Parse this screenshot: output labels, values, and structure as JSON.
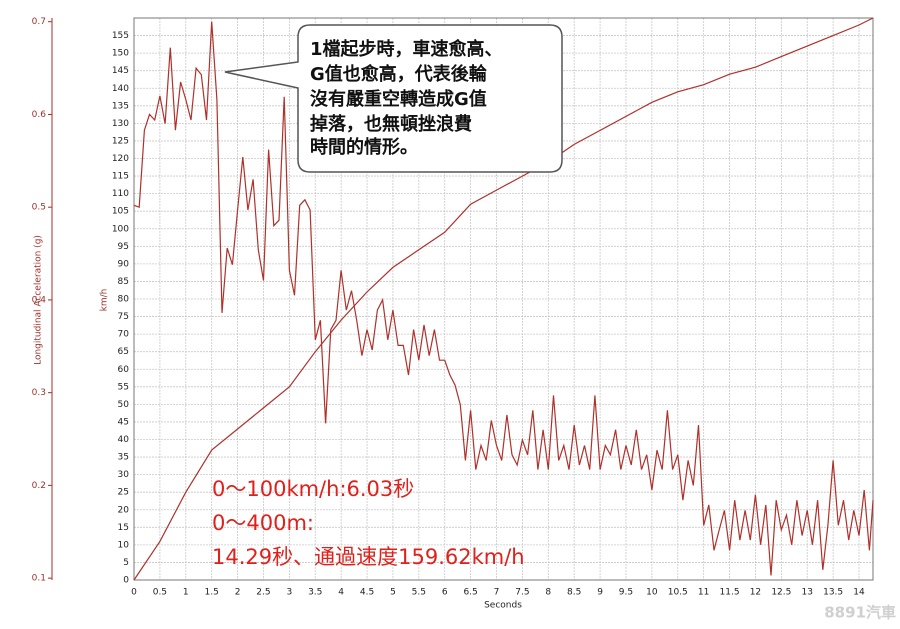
{
  "chart_data": {
    "type": "line",
    "x_label": "Seconds",
    "y_label": "km/h",
    "y2_label": "Longitudinal Acceleration (g)",
    "xlim": [
      0,
      14.27
    ],
    "ylim": [
      0,
      160
    ],
    "y2lim": [
      0.098,
      0.704
    ],
    "xticks": [
      0,
      0.5,
      1,
      1.5,
      2,
      2.5,
      3,
      3.5,
      4,
      4.5,
      5,
      5.5,
      6,
      6.5,
      7,
      7.5,
      8,
      8.5,
      9,
      9.5,
      10,
      10.5,
      11,
      11.5,
      12,
      12.5,
      13,
      13.5,
      14
    ],
    "yticks": [
      0,
      5,
      10,
      15,
      20,
      25,
      30,
      35,
      40,
      45,
      50,
      55,
      60,
      65,
      70,
      75,
      80,
      85,
      90,
      95,
      100,
      105,
      110,
      115,
      120,
      125,
      130,
      135,
      140,
      145,
      150,
      155
    ],
    "y2ticks": [
      0.1,
      0.2,
      0.3,
      0.4,
      0.5,
      0.6,
      0.7
    ],
    "grid": true,
    "series": [
      {
        "color": "#b0302a",
        "x": [
          0,
          0.5,
          1,
          1.5,
          2,
          2.5,
          3,
          3.5,
          4,
          4.5,
          5,
          5.5,
          6,
          6.5,
          7,
          7.5,
          8,
          8.5,
          9,
          9.5,
          10,
          10.5,
          11,
          11.5,
          12,
          12.5,
          13,
          13.5,
          14,
          14.27
        ],
        "values": [
          0,
          11,
          25,
          37,
          43,
          49,
          55,
          65,
          74,
          82,
          89,
          94,
          99,
          107,
          111,
          115,
          119,
          124,
          128,
          132,
          136,
          139,
          141,
          144,
          146,
          149,
          152,
          155,
          158,
          160
        ]
      },
      {
        "color": "#b0302a",
        "axis": "y2",
        "x": [
          0,
          0.1,
          0.2,
          0.3,
          0.4,
          0.5,
          0.6,
          0.7,
          0.8,
          0.9,
          1,
          1.1,
          1.2,
          1.3,
          1.4,
          1.5,
          1.6,
          1.7,
          1.8,
          1.9,
          2,
          2.1,
          2.2,
          2.3,
          2.4,
          2.5,
          2.6,
          2.7,
          2.8,
          2.9,
          3,
          3.1,
          3.2,
          3.3,
          3.4,
          3.5,
          3.6,
          3.7,
          3.8,
          3.9,
          4,
          4.1,
          4.2,
          4.3,
          4.4,
          4.5,
          4.6,
          4.7,
          4.8,
          4.9,
          5,
          5.1,
          5.2,
          5.3,
          5.4,
          5.5,
          5.6,
          5.7,
          5.8,
          5.9,
          6,
          6.1,
          6.2,
          6.3,
          6.4,
          6.5,
          6.6,
          6.7,
          6.8,
          6.9,
          7,
          7.1,
          7.2,
          7.3,
          7.4,
          7.5,
          7.6,
          7.7,
          7.8,
          7.9,
          8,
          8.1,
          8.2,
          8.3,
          8.4,
          8.5,
          8.6,
          8.7,
          8.8,
          8.9,
          9,
          9.1,
          9.2,
          9.3,
          9.4,
          9.5,
          9.6,
          9.7,
          9.8,
          9.9,
          10,
          10.1,
          10.2,
          10.3,
          10.4,
          10.5,
          10.6,
          10.7,
          10.8,
          10.9,
          11,
          11.1,
          11.2,
          11.3,
          11.4,
          11.5,
          11.6,
          11.7,
          11.8,
          11.9,
          12,
          12.1,
          12.2,
          12.3,
          12.4,
          12.5,
          12.6,
          12.7,
          12.8,
          12.9,
          13,
          13.1,
          13.2,
          13.3,
          13.4,
          13.5,
          13.6,
          13.7,
          13.8,
          13.9,
          14,
          14.1,
          14.2,
          14.27
        ],
        "values": [
          0.502,
          0.5,
          0.583,
          0.6,
          0.594,
          0.62,
          0.59,
          0.672,
          0.583,
          0.635,
          0.616,
          0.594,
          0.65,
          0.643,
          0.594,
          0.7,
          0.616,
          0.386,
          0.456,
          0.438,
          0.497,
          0.554,
          0.497,
          0.53,
          0.454,
          0.421,
          0.562,
          0.48,
          0.486,
          0.619,
          0.432,
          0.405,
          0.502,
          0.508,
          0.497,
          0.357,
          0.378,
          0.267,
          0.368,
          0.378,
          0.432,
          0.389,
          0.41,
          0.378,
          0.34,
          0.368,
          0.346,
          0.389,
          0.4,
          0.357,
          0.389,
          0.351,
          0.351,
          0.319,
          0.368,
          0.335,
          0.373,
          0.34,
          0.368,
          0.335,
          0.335,
          0.319,
          0.308,
          0.287,
          0.227,
          0.281,
          0.217,
          0.243,
          0.227,
          0.27,
          0.243,
          0.227,
          0.276,
          0.233,
          0.222,
          0.249,
          0.233,
          0.281,
          0.217,
          0.26,
          0.217,
          0.297,
          0.227,
          0.243,
          0.217,
          0.265,
          0.222,
          0.243,
          0.217,
          0.297,
          0.217,
          0.243,
          0.233,
          0.26,
          0.217,
          0.243,
          0.222,
          0.26,
          0.217,
          0.233,
          0.195,
          0.238,
          0.217,
          0.281,
          0.217,
          0.233,
          0.184,
          0.227,
          0.2,
          0.265,
          0.157,
          0.179,
          0.13,
          0.152,
          0.173,
          0.13,
          0.184,
          0.141,
          0.173,
          0.141,
          0.19,
          0.136,
          0.179,
          0.103,
          0.184,
          0.152,
          0.168,
          0.136,
          0.184,
          0.146,
          0.173,
          0.136,
          0.184,
          0.109,
          0.157,
          0.227,
          0.157,
          0.184,
          0.141,
          0.173,
          0.146,
          0.195,
          0.13,
          0.184
        ]
      }
    ],
    "annotations": [
      "1檔起步時，車速愈高、",
      "G值也愈高，代表後輪",
      "沒有嚴重空轉造成G值",
      "掉落，也無頓挫浪費",
      "時間的情形。"
    ],
    "results": [
      "0～100km/h:6.03秒",
      "0～400m:",
      "14.29秒、通過速度159.62km/h"
    ],
    "watermark": "8891汽車"
  }
}
